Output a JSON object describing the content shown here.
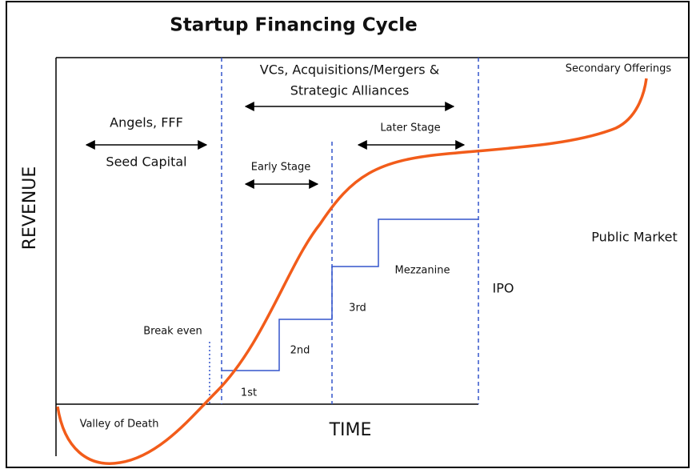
{
  "title": "Startup Financing Cycle",
  "axes": {
    "y": "REVENUE",
    "x": "TIME"
  },
  "stages": {
    "vcs": [
      "VCs, Acquisitions/Mergers &",
      "Strategic Alliances"
    ],
    "angels": "Angels, FFF",
    "seed": "Seed Capital",
    "early": "Early Stage",
    "later": "Later Stage",
    "public": "Public Market",
    "mezzanine": "Mezzanine",
    "ipo": "IPO",
    "third": "3rd",
    "second": "2nd",
    "first": "1st",
    "break_even": "Break even",
    "valley": "Valley of Death",
    "secondary": "Secondary Offerings"
  }
}
